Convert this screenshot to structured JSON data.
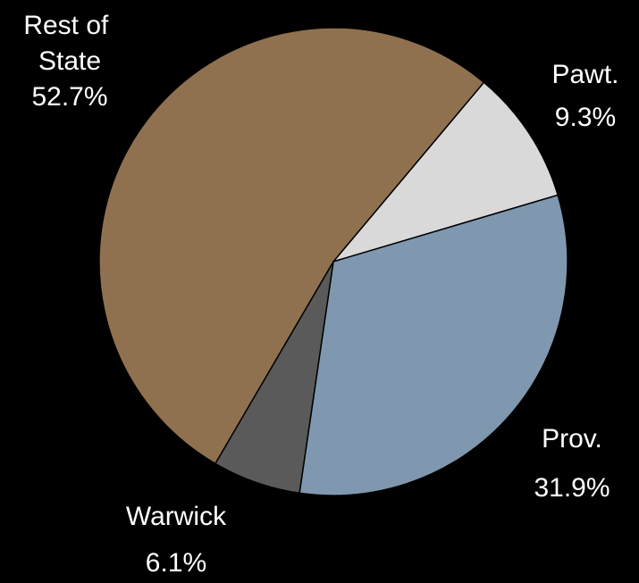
{
  "chart_data": {
    "type": "pie",
    "categories": [
      "Pawt.",
      "Prov.",
      "Warwick",
      "Rest of State"
    ],
    "values": [
      9.3,
      31.9,
      6.1,
      52.7
    ],
    "value_labels": [
      "9.3%",
      "31.9%",
      "6.1%",
      "52.7%"
    ],
    "colors": [
      "#d9d9d9",
      "#7f98b0",
      "#5a5a5a",
      "#8f7150"
    ]
  }
}
